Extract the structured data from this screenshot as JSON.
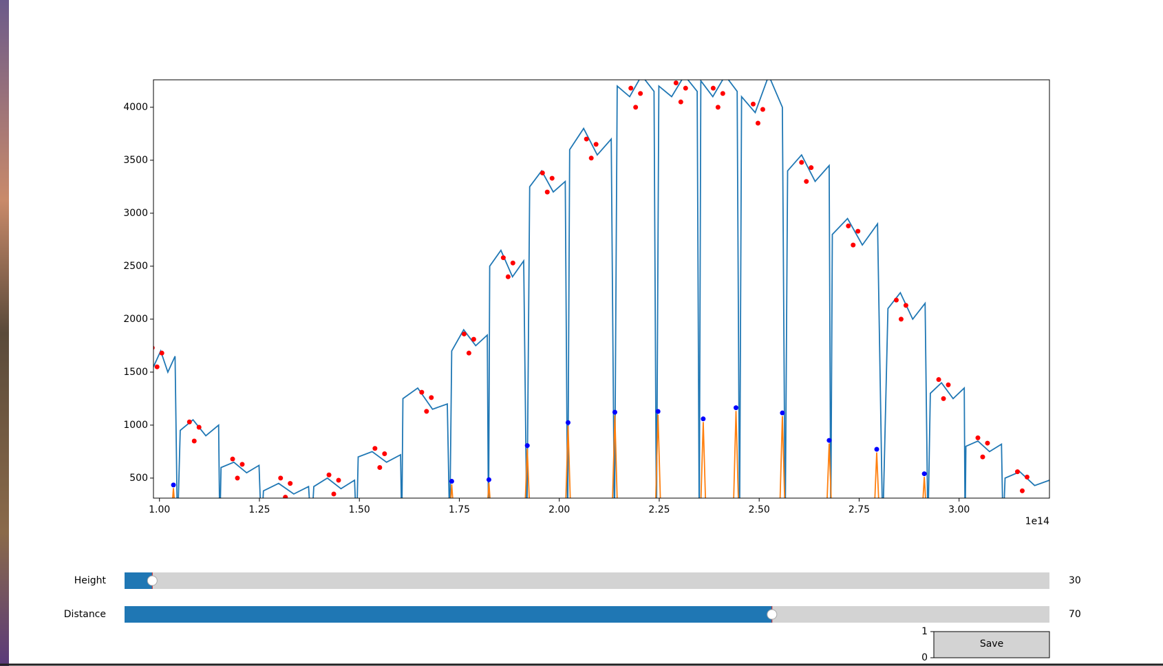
{
  "chart_data": {
    "type": "line",
    "xlim": [
      98500000000000.0,
      322600000000000.0
    ],
    "xticks": [
      {
        "value": 100000000000000.0,
        "label": "1.00"
      },
      {
        "value": 125000000000000.0,
        "label": "1.25"
      },
      {
        "value": 150000000000000.0,
        "label": "1.50"
      },
      {
        "value": 175000000000000.0,
        "label": "1.75"
      },
      {
        "value": 200000000000000.0,
        "label": "2.00"
      },
      {
        "value": 225000000000000.0,
        "label": "2.25"
      },
      {
        "value": 250000000000000.0,
        "label": "2.50"
      },
      {
        "value": 275000000000000.0,
        "label": "2.75"
      },
      {
        "value": 300000000000000.0,
        "label": "3.00"
      }
    ],
    "x_offset_label": "1e14",
    "ylim": [
      311,
      4259
    ],
    "yticks": [
      500,
      1000,
      1500,
      2000,
      2500,
      3000,
      3500,
      4000
    ],
    "series": [
      {
        "kind": "line",
        "color": "#1f77b4",
        "x": [
          98500000000000.0,
          100300000000000.0,
          102100000000000.0,
          103900000000000.0,
          104500000000000.0,
          105200000000000.0,
          108400000000000.0,
          111600000000000.0,
          114800000000000.0,
          115100000000000.0,
          115400000000000.0,
          118600000000000.0,
          121800000000000.0,
          124900000000000.0,
          125500000000000.0,
          126000000000000.0,
          129800000000000.0,
          133600000000000.0,
          137300000000000.0,
          138000000000000.0,
          138600000000000.0,
          142000000000000.0,
          145400000000000.0,
          148800000000000.0,
          149300000000000.0,
          149700000000000.0,
          153200000000000.0,
          156800000000000.0,
          160300000000000.0,
          160600000000000.0,
          160900000000000.0,
          164600000000000.0,
          168300000000000.0,
          172000000000000.0,
          172600000000000.0,
          173100000000000.0,
          176100000000000.0,
          179100000000000.0,
          182000000000000.0,
          182300000000000.0,
          182600000000000.0,
          185400000000000.0,
          188300000000000.0,
          191100000000000.0,
          191900000000000.0,
          192600000000000.0,
          195600000000000.0,
          198500000000000.0,
          201500000000000.0,
          202100000000000.0,
          202600000000000.0,
          206100000000000.0,
          209500000000000.0,
          213000000000000.0,
          213800000000000.0,
          214500000000000.0,
          217600000000000.0,
          220600000000000.0,
          223700000000000.0,
          224300000000000.0,
          224900000000000.0,
          228100000000000.0,
          231300000000000.0,
          234500000000000.0,
          235000000000000.0,
          235400000000000.0,
          238400000000000.0,
          241500000000000.0,
          244500000000000.0,
          245100000000000.0,
          245600000000000.0,
          249000000000000.0,
          252400000000000.0,
          255800000000000.0,
          256500000000000.0,
          257100000000000.0,
          260600000000000.0,
          264000000000000.0,
          267500000000000.0,
          267900000000000.0,
          268300000000000.0,
          272100000000000.0,
          275800000000000.0,
          279600000000000.0,
          280900000000000.0,
          282200000000000.0,
          285300000000000.0,
          288400000000000.0,
          291500000000000.0,
          292200000000000.0,
          292800000000000.0,
          295600000000000.0,
          298500000000000.0,
          301300000000000.0,
          301500000000000.0,
          301700000000000.0,
          304700000000000.0,
          307600000000000.0,
          310600000000000.0,
          311000000000000.0,
          311500000000000.0,
          315200000000000.0,
          318900000000000.0,
          322600000000000.0
        ],
        "values": [
          1550,
          1700,
          1500,
          1650,
          0,
          950,
          1050,
          900,
          1000,
          0,
          600,
          650,
          550,
          620,
          0,
          380,
          450,
          350,
          420,
          0,
          420,
          500,
          400,
          480,
          0,
          700,
          750,
          650,
          720,
          0,
          1250,
          1350,
          1150,
          1200,
          0,
          1700,
          1900,
          1750,
          1850,
          0,
          2500,
          2650,
          2400,
          2550,
          0,
          3250,
          3400,
          3200,
          3300,
          0,
          3600,
          3800,
          3550,
          3700,
          0,
          4200,
          4100,
          4300,
          4150,
          0,
          4200,
          4100,
          4300,
          4150,
          0,
          4250,
          4100,
          4300,
          4150,
          0,
          4100,
          3950,
          4300,
          4000,
          0,
          3400,
          3550,
          3300,
          3450,
          0,
          2800,
          2950,
          2700,
          2900,
          0,
          2100,
          2250,
          2000,
          2150,
          0,
          1300,
          1400,
          1250,
          1350,
          0,
          800,
          850,
          750,
          820,
          0,
          500,
          560,
          430,
          480
        ]
      },
      {
        "kind": "line",
        "color": "#ff7f0e",
        "x": [
          102700000000000.0,
          103500000000000.0,
          104300000000000.0,
          172300000000000.0,
          173100000000000.0,
          173900000000000.0,
          181600000000000.0,
          182400000000000.0,
          183200000000000.0,
          191200000000000.0,
          192000000000000.0,
          192800000000000.0,
          201400000000000.0,
          202200000000000.0,
          203000000000000.0,
          213100000000000.0,
          213900000000000.0,
          214700000000000.0,
          223900000000000.0,
          224700000000000.0,
          225500000000000.0,
          235200000000000.0,
          236000000000000.0,
          236800000000000.0,
          243400000000000.0,
          244200000000000.0,
          245000000000000.0,
          255000000000000.0,
          255800000000000.0,
          256600000000000.0,
          266700000000000.0,
          267500000000000.0,
          268300000000000.0,
          278600000000000.0,
          279400000000000.0,
          280200000000000.0,
          290500000000000.0,
          291300000000000.0,
          292100000000000.0
        ],
        "values": [
          0,
          405,
          0,
          0,
          440,
          0,
          0,
          455,
          0,
          0,
          777,
          0,
          0,
          994,
          0,
          0,
          1092,
          0,
          0,
          1099,
          0,
          0,
          1029,
          0,
          0,
          1134,
          0,
          0,
          1085,
          0,
          0,
          826,
          0,
          0,
          742,
          0,
          0,
          511,
          0
        ]
      },
      {
        "kind": "scatter",
        "color": "#ff0000",
        "x": [
          98200000000000.0,
          99400000000000.0,
          100600000000000.0,
          107500000000000.0,
          108700000000000.0,
          109900000000000.0,
          118300000000000.0,
          119500000000000.0,
          120700000000000.0,
          130300000000000.0,
          131500000000000.0,
          132700000000000.0,
          142400000000000.0,
          143600000000000.0,
          144800000000000.0,
          153900000000000.0,
          155100000000000.0,
          156300000000000.0,
          165600000000000.0,
          166800000000000.0,
          168000000000000.0,
          176200000000000.0,
          177400000000000.0,
          178600000000000.0,
          186000000000000.0,
          187200000000000.0,
          188400000000000.0,
          195800000000000.0,
          197000000000000.0,
          198200000000000.0,
          206800000000000.0,
          208000000000000.0,
          209200000000000.0,
          217900000000000.0,
          219100000000000.0,
          220300000000000.0,
          229200000000000.0,
          230400000000000.0,
          231600000000000.0,
          238500000000000.0,
          239700000000000.0,
          240900000000000.0,
          248500000000000.0,
          249700000000000.0,
          250900000000000.0,
          260600000000000.0,
          261800000000000.0,
          263000000000000.0,
          272300000000000.0,
          273500000000000.0,
          274700000000000.0,
          284300000000000.0,
          285500000000000.0,
          286700000000000.0,
          294900000000000.0,
          296100000000000.0,
          297300000000000.0,
          304700000000000.0,
          305900000000000.0,
          307100000000000.0,
          314600000000000.0,
          315800000000000.0,
          317000000000000.0
        ],
        "values": [
          1730,
          1550,
          1680,
          1030,
          850,
          980,
          680,
          500,
          630,
          500,
          320,
          450,
          530,
          350,
          480,
          780,
          600,
          730,
          1310,
          1130,
          1260,
          1860,
          1680,
          1810,
          2580,
          2400,
          2530,
          3380,
          3200,
          3330,
          3700,
          3520,
          3650,
          4180,
          4000,
          4130,
          4230,
          4050,
          4180,
          4180,
          4000,
          4130,
          4030,
          3850,
          3980,
          3480,
          3300,
          3430,
          2880,
          2700,
          2830,
          2180,
          2000,
          2130,
          1430,
          1250,
          1380,
          880,
          700,
          830,
          560,
          380,
          510
        ]
      },
      {
        "kind": "scatter",
        "color": "#0000ff",
        "x": [
          103500000000000.0,
          173100000000000.0,
          182400000000000.0,
          192000000000000.0,
          202200000000000.0,
          213900000000000.0,
          224700000000000.0,
          236000000000000.0,
          244200000000000.0,
          255800000000000.0,
          267500000000000.0,
          279400000000000.0,
          291300000000000.0
        ],
        "values": [
          435,
          470,
          485,
          807,
          1024,
          1122,
          1129,
          1059,
          1164,
          1115,
          856,
          772,
          541
        ]
      }
    ]
  },
  "controls": {
    "sliders": [
      {
        "label": "Height",
        "value": 30,
        "range": [
          0,
          1000
        ],
        "color": "#1f77b4"
      },
      {
        "label": "Distance",
        "value": 70,
        "range": [
          0,
          100
        ],
        "color": "#1f77b4"
      }
    ],
    "button": "Save",
    "button_axes_yticks": [
      0,
      1
    ]
  }
}
